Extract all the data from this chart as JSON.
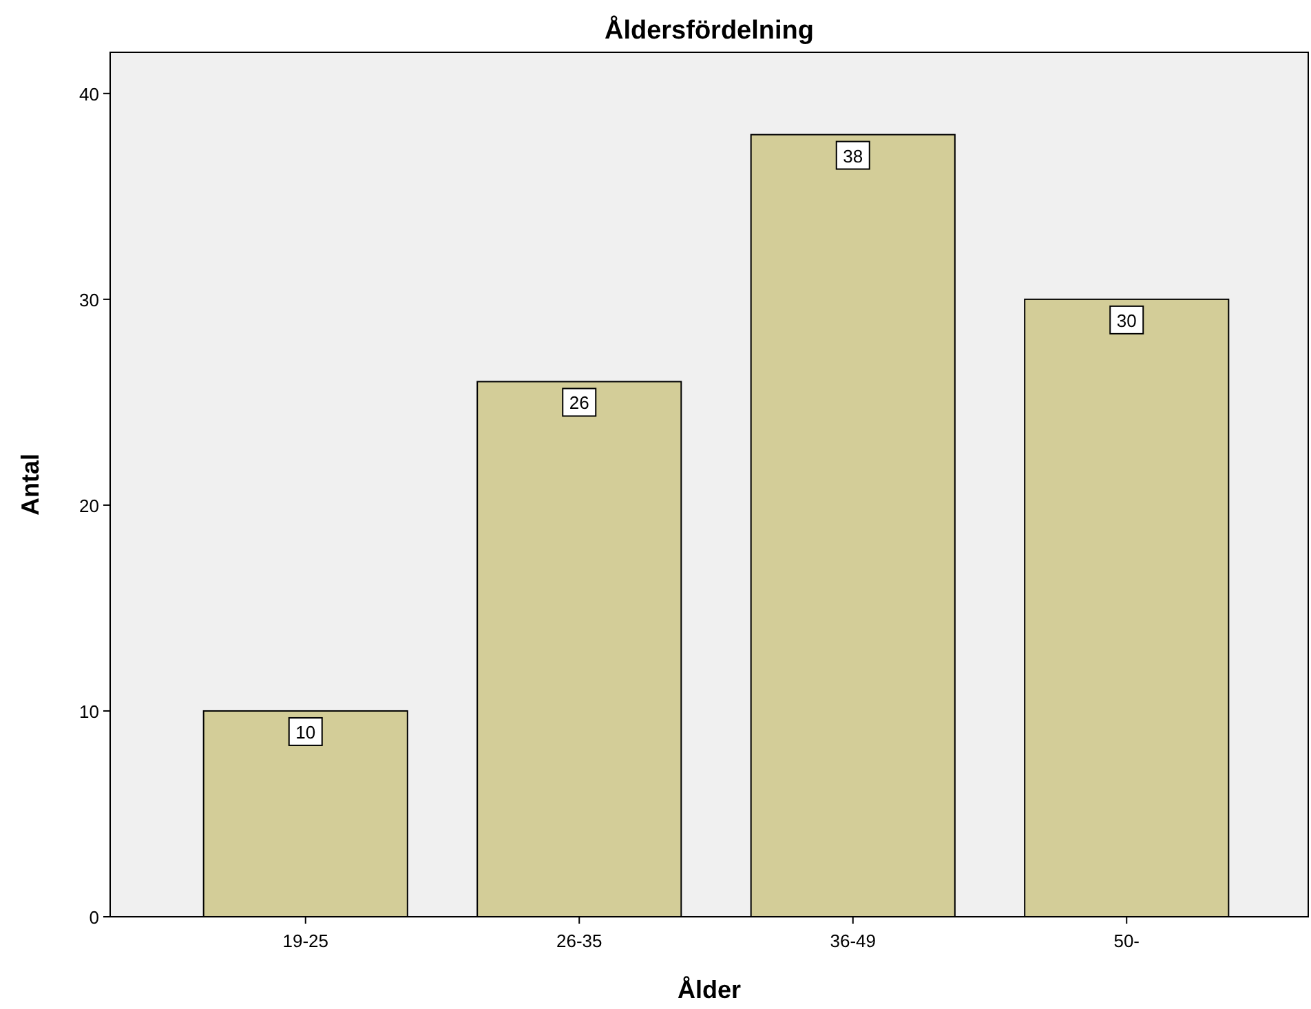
{
  "chart_data": {
    "type": "bar",
    "title": "Åldersfördelning",
    "xlabel": "Ålder",
    "ylabel": "Antal",
    "categories": [
      "19-25",
      "26-35",
      "36-49",
      "50-"
    ],
    "values": [
      10,
      26,
      38,
      30
    ],
    "color": "#d3cd98",
    "ylim": [
      0,
      42
    ],
    "yticks": [
      0,
      10,
      20,
      30,
      40
    ],
    "grid": false,
    "data_labels": true
  }
}
